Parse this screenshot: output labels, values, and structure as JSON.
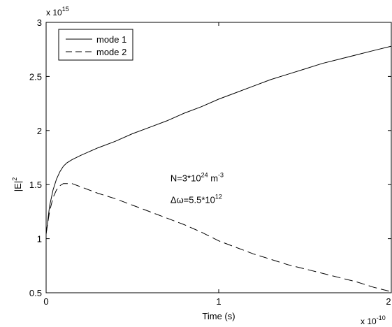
{
  "chart_data": {
    "type": "line",
    "title": "",
    "xlabel": "Time (s)",
    "ylabel": "|E|",
    "ylabel_sup": "2",
    "xlim": [
      0,
      2
    ],
    "ylim": [
      0.5,
      3
    ],
    "x_ticks": [
      0,
      1,
      2
    ],
    "y_ticks": [
      0.5,
      1,
      1.5,
      2,
      2.5,
      3
    ],
    "x_tick_labels": [
      "0",
      "1",
      "2"
    ],
    "y_tick_labels": [
      "0.5",
      "1",
      "1.5",
      "2",
      "2.5",
      "3"
    ],
    "x_exponent": {
      "base": "x 10",
      "power": "-10"
    },
    "y_exponent": {
      "base": "x 10",
      "power": "15"
    },
    "grid": false,
    "legend": {
      "placement": "top-left",
      "entries": [
        {
          "name": "mode 1",
          "style": "solid"
        },
        {
          "name": "mode 2",
          "style": "dashed"
        }
      ]
    },
    "annotations": [
      {
        "text": "N=3*10",
        "sup": "24",
        "tail": " m",
        "tail_sup": "-3",
        "x": 0.72,
        "y": 1.53
      },
      {
        "text": "Δω=5.5*10",
        "sup": "12",
        "tail": "",
        "tail_sup": "",
        "x": 0.72,
        "y": 1.33
      }
    ],
    "series": [
      {
        "name": "mode 1",
        "style": "solid",
        "x": [
          0,
          0.02,
          0.04,
          0.06,
          0.08,
          0.1,
          0.12,
          0.15,
          0.2,
          0.3,
          0.4,
          0.5,
          0.6,
          0.7,
          0.8,
          0.9,
          1.0,
          1.1,
          1.2,
          1.3,
          1.4,
          1.5,
          1.6,
          1.7,
          1.8,
          1.9,
          2.0
        ],
        "y": [
          1.04,
          1.3,
          1.45,
          1.55,
          1.62,
          1.67,
          1.7,
          1.73,
          1.77,
          1.84,
          1.9,
          1.97,
          2.03,
          2.09,
          2.16,
          2.22,
          2.29,
          2.35,
          2.41,
          2.47,
          2.52,
          2.57,
          2.62,
          2.66,
          2.7,
          2.74,
          2.78
        ]
      },
      {
        "name": "mode 2",
        "style": "dashed",
        "x": [
          0,
          0.02,
          0.04,
          0.06,
          0.08,
          0.1,
          0.15,
          0.2,
          0.3,
          0.4,
          0.5,
          0.6,
          0.7,
          0.8,
          0.9,
          1.0,
          1.1,
          1.2,
          1.3,
          1.4,
          1.5,
          1.6,
          1.7,
          1.8,
          1.9,
          2.0
        ],
        "y": [
          1.05,
          1.25,
          1.38,
          1.45,
          1.49,
          1.51,
          1.51,
          1.48,
          1.42,
          1.37,
          1.31,
          1.25,
          1.19,
          1.13,
          1.06,
          0.98,
          0.92,
          0.86,
          0.81,
          0.76,
          0.72,
          0.68,
          0.64,
          0.6,
          0.55,
          0.51
        ]
      }
    ]
  }
}
